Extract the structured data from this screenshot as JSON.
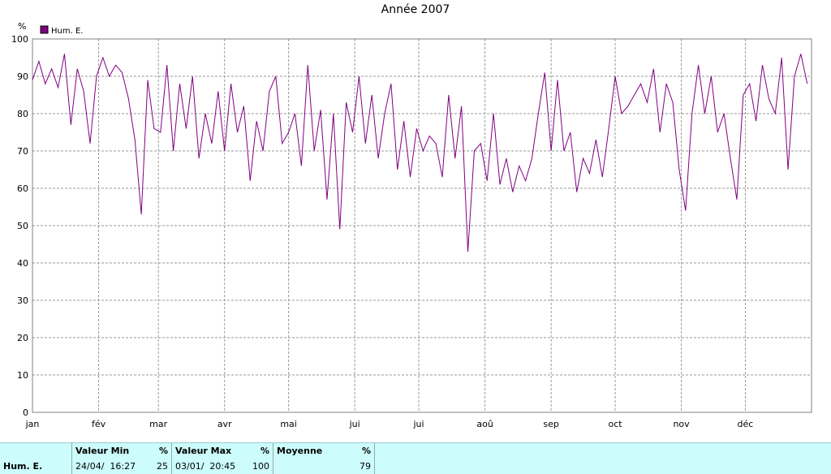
{
  "chart_data": {
    "type": "line",
    "title": "Année 2007",
    "y_label": "%",
    "x": [
      0,
      3,
      6,
      9,
      12,
      15,
      18,
      21,
      24,
      27,
      30,
      33,
      36,
      39,
      42,
      45,
      48,
      51,
      54,
      57,
      60,
      63,
      66,
      69,
      72,
      75,
      78,
      81,
      84,
      87,
      90,
      93,
      96,
      99,
      102,
      105,
      108,
      111,
      114,
      117,
      120,
      123,
      126,
      129,
      132,
      135,
      138,
      141,
      144,
      147,
      150,
      153,
      156,
      159,
      162,
      165,
      168,
      171,
      174,
      177,
      180,
      183,
      186,
      189,
      192,
      195,
      198,
      201,
      204,
      207,
      210,
      213,
      216,
      219,
      222,
      225,
      228,
      231,
      234,
      237,
      240,
      243,
      246,
      249,
      252,
      255,
      258,
      261,
      264,
      267,
      270,
      273,
      276,
      279,
      282,
      285,
      288,
      291,
      294,
      297,
      300,
      303,
      306,
      309,
      312,
      315,
      318,
      321,
      324,
      327,
      330,
      333,
      336,
      339,
      342,
      345,
      348,
      351,
      354,
      357,
      360,
      363
    ],
    "series": [
      {
        "name": "Hum. E.",
        "color": "#800080",
        "values": [
          89,
          94,
          88,
          92,
          87,
          96,
          77,
          92,
          86,
          72,
          90,
          95,
          90,
          93,
          91,
          84,
          73,
          53,
          89,
          76,
          75,
          93,
          70,
          88,
          76,
          90,
          68,
          80,
          72,
          86,
          70,
          88,
          75,
          82,
          62,
          78,
          70,
          86,
          90,
          72,
          75,
          80,
          66,
          93,
          70,
          81,
          57,
          80,
          49,
          83,
          75,
          90,
          72,
          85,
          68,
          80,
          88,
          65,
          78,
          63,
          76,
          70,
          74,
          72,
          63,
          85,
          68,
          82,
          43,
          70,
          72,
          62,
          80,
          61,
          68,
          59,
          66,
          62,
          68,
          80,
          91,
          70,
          89,
          70,
          75,
          59,
          68,
          64,
          73,
          63,
          76,
          90,
          80,
          82,
          85,
          88,
          83,
          92,
          75,
          88,
          83,
          65,
          54,
          80,
          93,
          80,
          90,
          75,
          80,
          68,
          57,
          85,
          88,
          78,
          93,
          84,
          80,
          95,
          65,
          90,
          96,
          88
        ]
      }
    ],
    "xlim": [
      0,
      365
    ],
    "xticks": [
      {
        "value": 0,
        "label": "jan"
      },
      {
        "value": 31,
        "label": "fév"
      },
      {
        "value": 59,
        "label": "mar"
      },
      {
        "value": 90,
        "label": "avr"
      },
      {
        "value": 120,
        "label": "mai"
      },
      {
        "value": 151,
        "label": "jui"
      },
      {
        "value": 181,
        "label": "jui"
      },
      {
        "value": 212,
        "label": "aoû"
      },
      {
        "value": 243,
        "label": "sep"
      },
      {
        "value": 273,
        "label": "oct"
      },
      {
        "value": 304,
        "label": "nov"
      },
      {
        "value": 334,
        "label": "déc"
      }
    ],
    "ylim": [
      0,
      100
    ],
    "yticks": [
      0,
      10,
      20,
      30,
      40,
      50,
      60,
      70,
      80,
      90,
      100
    ],
    "grid": true
  },
  "table": {
    "header": [
      "Valeur Min",
      "%",
      "Valeur Max",
      "%",
      "Moyenne",
      "%"
    ],
    "rows": [
      [
        "Hum. E.",
        "24/04/  16:27",
        "25",
        "03/01/  20:45",
        "100",
        "79"
      ]
    ]
  }
}
